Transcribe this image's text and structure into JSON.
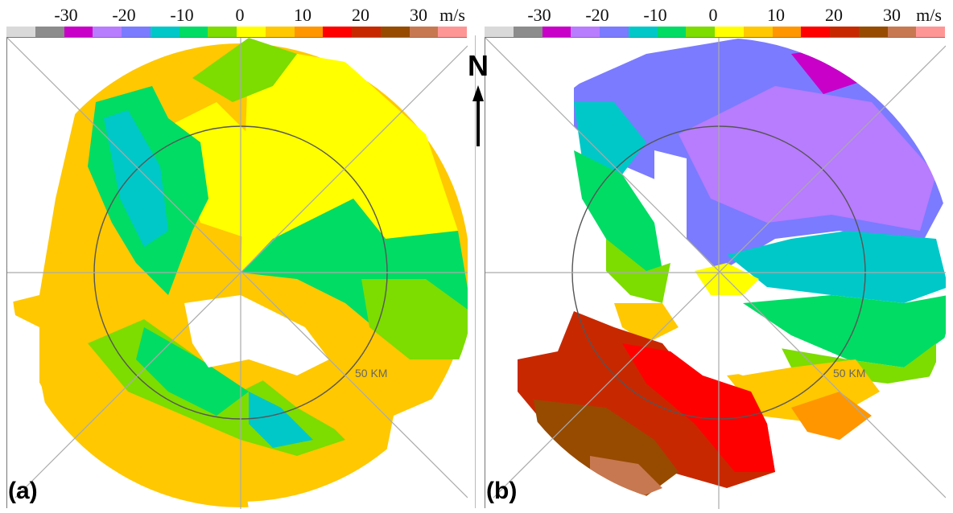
{
  "colorbar": {
    "unit": "m/s",
    "ticks": [
      "-30",
      "-20",
      "-10",
      "0",
      "10",
      "20",
      "30"
    ],
    "colors": [
      "#d9d9d9",
      "#8c8c8c",
      "#c800c8",
      "#b87cff",
      "#7b7bff",
      "#00c8c8",
      "#00dc64",
      "#7ddc00",
      "#ffff00",
      "#ffc800",
      "#ff9600",
      "#ff0000",
      "#c82800",
      "#964b00",
      "#c87850",
      "#ff9696"
    ]
  },
  "panels": [
    {
      "id": "a",
      "label": "(a)",
      "range_label": "50 KM"
    },
    {
      "id": "b",
      "label": "(b)",
      "range_label": "50 KM"
    }
  ],
  "north_label": "N"
}
